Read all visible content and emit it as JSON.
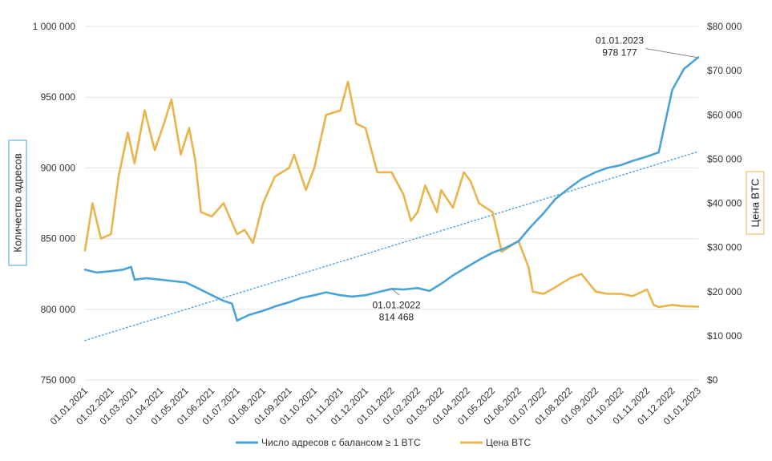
{
  "chart_data": {
    "type": "line",
    "xlabel": "",
    "x_ticks": [
      "01.01.2021",
      "01.02.2021",
      "01.03.2021",
      "01.04.2021",
      "01.05.2021",
      "01.06.2021",
      "01.07.2021",
      "01.08.2021",
      "01.09.2021",
      "01.10.2021",
      "01.11.2021",
      "01.12.2021",
      "01.01.2022",
      "01.02.2022",
      "01.03.2022",
      "01.04.2022",
      "01.05.2022",
      "01.06.2022",
      "01.07.2022",
      "01.08.2022",
      "01.09.2022",
      "01.10.2022",
      "01.11.2022",
      "01.12.2022",
      "01.01.2023"
    ],
    "y_left": {
      "label": "Количество адресов",
      "range": [
        750000,
        1000000
      ],
      "ticks": [
        750000,
        800000,
        850000,
        900000,
        950000,
        1000000
      ],
      "tick_labels": [
        "750 000",
        "800 000",
        "850 000",
        "900 000",
        "950 000",
        "1 000 000"
      ],
      "color": "#4aa3d8"
    },
    "y_right": {
      "label": "Цена BTC",
      "range": [
        0,
        80000
      ],
      "ticks": [
        0,
        10000,
        20000,
        30000,
        40000,
        50000,
        60000,
        70000,
        80000
      ],
      "tick_labels": [
        "$0",
        "$10 000",
        "$20 000",
        "$30 000",
        "$40 000",
        "$50 000",
        "$60 000",
        "$70 000",
        "$80 000"
      ],
      "color": "#e9b44c"
    },
    "grid": "horizontal",
    "legend_position": "bottom-center",
    "series": [
      {
        "name": "Число адресов с балансом ≥ 1 BTC",
        "axis": "left",
        "color": "#4aa3d8",
        "x": [
          "01.01.2021",
          "15.01.2021",
          "01.02.2021",
          "15.02.2021",
          "25.02.2021",
          "01.03.2021",
          "15.03.2021",
          "01.04.2021",
          "15.04.2021",
          "01.05.2021",
          "15.05.2021",
          "01.06.2021",
          "15.06.2021",
          "25.06.2021",
          "01.07.2021",
          "15.07.2021",
          "01.08.2021",
          "15.08.2021",
          "01.09.2021",
          "15.09.2021",
          "01.10.2021",
          "15.10.2021",
          "01.11.2021",
          "15.11.2021",
          "01.12.2021",
          "15.12.2021",
          "01.01.2022",
          "15.01.2022",
          "01.02.2022",
          "15.02.2022",
          "01.03.2022",
          "15.03.2022",
          "01.04.2022",
          "15.04.2022",
          "01.05.2022",
          "15.05.2022",
          "01.06.2022",
          "15.06.2022",
          "01.07.2022",
          "15.07.2022",
          "01.08.2022",
          "15.08.2022",
          "01.09.2022",
          "15.09.2022",
          "01.10.2022",
          "15.10.2022",
          "01.11.2022",
          "15.11.2022",
          "01.12.2022",
          "15.12.2022",
          "01.01.2023"
        ],
        "y": [
          828000,
          826000,
          827000,
          828000,
          830000,
          821000,
          822000,
          821000,
          820000,
          819000,
          815000,
          810000,
          806000,
          804000,
          792000,
          796000,
          799000,
          802000,
          805000,
          808000,
          810000,
          812000,
          810000,
          809000,
          810000,
          812000,
          814468,
          814000,
          815000,
          813000,
          818000,
          824000,
          830000,
          835000,
          840000,
          843000,
          848000,
          858000,
          868000,
          878000,
          886000,
          892000,
          897000,
          900000,
          902000,
          905000,
          908000,
          911000,
          955000,
          970000,
          978177
        ]
      },
      {
        "name": "Цена BTC",
        "axis": "right",
        "color": "#e9b44c",
        "x": [
          "01.01.2021",
          "10.01.2021",
          "20.01.2021",
          "01.02.2021",
          "10.02.2021",
          "21.02.2021",
          "01.03.2021",
          "13.03.2021",
          "25.03.2021",
          "05.04.2021",
          "14.04.2021",
          "25.04.2021",
          "05.05.2021",
          "12.05.2021",
          "19.05.2021",
          "01.06.2021",
          "15.06.2021",
          "01.07.2021",
          "10.07.2021",
          "20.07.2021",
          "01.08.2021",
          "15.08.2021",
          "01.09.2021",
          "07.09.2021",
          "21.09.2021",
          "01.10.2021",
          "15.10.2021",
          "01.11.2021",
          "10.11.2021",
          "20.11.2021",
          "01.12.2021",
          "15.12.2021",
          "01.01.2022",
          "15.01.2022",
          "24.01.2022",
          "01.02.2022",
          "10.02.2022",
          "24.02.2022",
          "01.03.2022",
          "15.03.2022",
          "28.03.2022",
          "05.04.2022",
          "15.04.2022",
          "01.05.2022",
          "12.05.2022",
          "01.06.2022",
          "13.06.2022",
          "18.06.2022",
          "01.07.2022",
          "15.07.2022",
          "01.08.2022",
          "15.08.2022",
          "01.09.2022",
          "15.09.2022",
          "01.10.2022",
          "15.10.2022",
          "01.11.2022",
          "09.11.2022",
          "15.11.2022",
          "01.12.2022",
          "15.12.2022",
          "01.01.2023"
        ],
        "y": [
          29300,
          40000,
          32000,
          33000,
          46000,
          56000,
          49000,
          61000,
          52000,
          58000,
          63500,
          51000,
          57000,
          50000,
          38000,
          37000,
          40000,
          33000,
          34000,
          31000,
          40000,
          46000,
          48000,
          51000,
          43000,
          48000,
          60000,
          61000,
          67500,
          58000,
          57000,
          47000,
          47000,
          42000,
          36000,
          38000,
          44000,
          38000,
          43000,
          39000,
          47000,
          45000,
          40000,
          38000,
          29000,
          31500,
          25500,
          20000,
          19500,
          21000,
          23000,
          24000,
          20000,
          19500,
          19500,
          19000,
          20500,
          17000,
          16500,
          17000,
          16700,
          16600
        ]
      }
    ],
    "annotations": [
      {
        "date": "01.01.2022",
        "label": "01.01.2022",
        "value_label": "814 468",
        "value": 814468
      },
      {
        "date": "01.01.2023",
        "label": "01.01.2023",
        "value_label": "978 177",
        "value": 978177
      }
    ],
    "trendline": {
      "axis": "left",
      "color": "#4aa3d8",
      "style": "dotted",
      "from": {
        "date": "01.01.2021",
        "y": 778000
      },
      "to": {
        "date": "01.01.2023",
        "y": 911500
      }
    }
  }
}
